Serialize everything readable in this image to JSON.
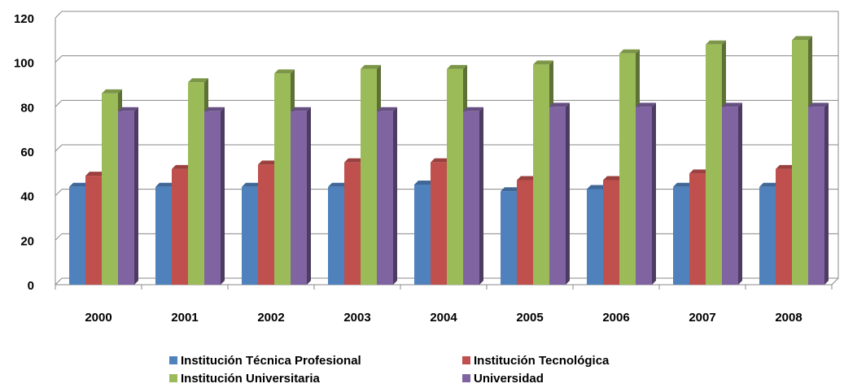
{
  "chart_data": {
    "type": "bar3d",
    "categories": [
      "2000",
      "2001",
      "2002",
      "2003",
      "2004",
      "2005",
      "2006",
      "2007",
      "2008"
    ],
    "series": [
      {
        "name": "Institución Técnica Profesional",
        "color": "#4f81bd",
        "values": [
          44,
          44,
          44,
          44,
          45,
          42,
          43,
          44,
          44
        ]
      },
      {
        "name": "Institución Tecnológica",
        "color": "#c0504d",
        "values": [
          49,
          52,
          54,
          55,
          55,
          47,
          47,
          50,
          52
        ]
      },
      {
        "name": "Institución Universitaria",
        "color": "#9bbb59",
        "values": [
          86,
          91,
          95,
          97,
          97,
          99,
          104,
          108,
          110
        ]
      },
      {
        "name": "Universidad",
        "color": "#8064a2",
        "values": [
          78,
          78,
          78,
          78,
          78,
          80,
          80,
          80,
          80
        ]
      }
    ],
    "ylim": [
      0,
      120
    ],
    "yticks": [
      0,
      20,
      40,
      60,
      80,
      100,
      120
    ],
    "grid": true
  }
}
